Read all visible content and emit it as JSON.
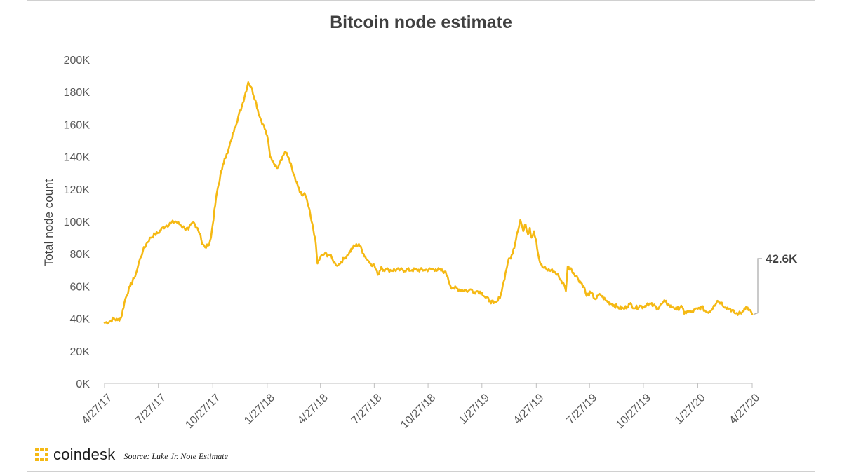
{
  "chart_data": {
    "type": "line",
    "title": "Bitcoin node estimate",
    "ylabel": "Total node count",
    "xlabel": "",
    "ylim": [
      0,
      200000
    ],
    "yticks": [
      0,
      20000,
      40000,
      60000,
      80000,
      100000,
      120000,
      140000,
      160000,
      180000,
      200000
    ],
    "ytick_labels": [
      "0K",
      "20K",
      "40K",
      "60K",
      "80K",
      "100K",
      "120K",
      "140K",
      "160K",
      "180K",
      "200K"
    ],
    "xlim": [
      0,
      1095
    ],
    "xtick_days": [
      0,
      91,
      183,
      275,
      365,
      456,
      547,
      638,
      730,
      820,
      911,
      1003,
      1095
    ],
    "xtick_labels": [
      "4/27/17",
      "7/27/17",
      "10/27/17",
      "1/27/18",
      "4/27/18",
      "7/27/18",
      "10/27/18",
      "1/27/19",
      "4/27/19",
      "7/27/19",
      "10/27/19",
      "1/27/20",
      "4/27/20"
    ],
    "grid": false,
    "line_color": "#f5b914",
    "series": [
      {
        "name": "Total node count",
        "x": [
          0,
          8,
          15,
          22,
          28,
          35,
          43,
          50,
          55,
          60,
          65,
          72,
          78,
          85,
          91,
          98,
          105,
          112,
          120,
          128,
          135,
          142,
          150,
          157,
          162,
          165,
          170,
          175,
          180,
          190,
          200,
          203,
          208,
          214,
          220,
          232,
          243,
          248,
          255,
          262,
          268,
          275,
          280,
          285,
          291,
          298,
          305,
          312,
          318,
          323,
          326,
          330,
          335,
          338,
          345,
          350,
          356,
          360,
          365,
          372,
          381,
          386,
          390,
          395,
          400,
          405,
          410,
          420,
          430,
          438,
          445,
          450,
          456,
          462,
          468,
          472,
          475,
          480,
          500,
          520,
          540,
          560,
          575,
          580,
          585,
          590,
          600,
          610,
          615,
          620,
          625,
          630,
          638,
          644,
          652,
          658,
          662,
          665,
          670,
          675,
          682,
          690,
          697,
          703,
          708,
          712,
          716,
          719,
          722,
          726,
          730,
          733,
          736,
          740,
          748,
          755,
          760,
          768,
          778,
          780,
          783,
          790,
          800,
          810,
          815,
          822,
          830,
          838,
          848,
          858,
          868,
          878,
          888,
          898,
          905,
          911,
          918,
          928,
          935,
          942,
          948,
          955,
          962,
          968,
          975,
          980,
          985,
          992,
          1003,
          1010,
          1018,
          1025,
          1030,
          1036,
          1042,
          1050,
          1058,
          1065,
          1072,
          1078,
          1082,
          1086,
          1090,
          1095
        ],
        "y": [
          37500,
          38000,
          40000,
          39000,
          40500,
          52000,
          60000,
          65000,
          70000,
          77000,
          82000,
          87000,
          90000,
          92000,
          93000,
          96000,
          97500,
          99000,
          100000,
          98000,
          96000,
          95000,
          99500,
          96000,
          92000,
          86000,
          84000,
          85000,
          90000,
          118000,
          135000,
          139000,
          142000,
          150000,
          158000,
          171000,
          186000,
          183000,
          175000,
          165000,
          160000,
          153000,
          140000,
          137000,
          133000,
          138000,
          143000,
          139000,
          131000,
          125000,
          123000,
          118000,
          116000,
          117500,
          109000,
          100000,
          90000,
          74000,
          78000,
          80000,
          79000,
          76000,
          74000,
          73000,
          75000,
          77000,
          79000,
          84000,
          86000,
          80000,
          76000,
          74000,
          73000,
          67000,
          72000,
          70000,
          70500,
          70000,
          70000,
          70000,
          70000,
          70500,
          69000,
          66000,
          60000,
          59000,
          58000,
          57500,
          57000,
          58000,
          56500,
          57000,
          56000,
          53000,
          51000,
          49500,
          50000,
          51000,
          55000,
          63000,
          75000,
          80000,
          92000,
          101000,
          94000,
          98000,
          92000,
          96000,
          90000,
          94000,
          88000,
          80000,
          75000,
          72000,
          70000,
          70000,
          69000,
          66000,
          60000,
          57000,
          72000,
          70000,
          65000,
          60000,
          54000,
          56000,
          52000,
          55000,
          51000,
          49000,
          47000,
          46000,
          49000,
          46500,
          48000,
          47000,
          49500,
          48000,
          46500,
          49000,
          50500,
          48000,
          47000,
          45500,
          48000,
          43000,
          44500,
          44000,
          46000,
          47000,
          44000,
          45000,
          48000,
          51000,
          50000,
          47000,
          46000,
          43500,
          43000,
          44000,
          46500,
          47000,
          45500,
          42600
        ]
      }
    ],
    "annotations": [
      {
        "text": "42.6K",
        "at_day": 1095,
        "value": 42600
      }
    ]
  },
  "footer": {
    "brand": "coindesk",
    "source": "Source:  Luke Jr. Note Estimate"
  }
}
